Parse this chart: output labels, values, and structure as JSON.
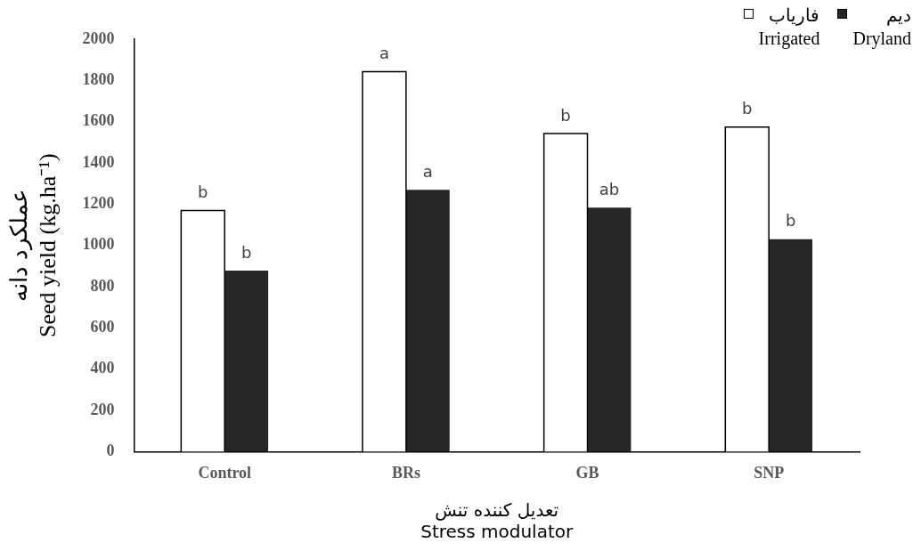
{
  "chart_data": {
    "type": "bar",
    "xlabel": [
      "تعدیل کننده تنش",
      "Stress modulator"
    ],
    "ylabel": [
      "عملکرد دانه",
      "Seed yield (kg.ha⁻¹)"
    ],
    "categories": [
      "Control",
      "BRs",
      "GB",
      "SNP"
    ],
    "series": [
      {
        "name": "فاریاب\nIrrigated",
        "color": "#ffffff",
        "values": [
          1169,
          1842,
          1542,
          1574
        ],
        "value_labels": [
          "b",
          "a",
          "b",
          "b"
        ]
      },
      {
        "name": "دیم\nDryland",
        "color": "#262626",
        "values": [
          878,
          1270,
          1183,
          1030
        ],
        "value_labels": [
          "b",
          "a",
          "ab",
          "b"
        ]
      }
    ],
    "ylim": [
      0,
      2000
    ],
    "yticks": [
      0,
      200,
      400,
      600,
      800,
      1000,
      1200,
      1400,
      1600,
      1800,
      2000
    ],
    "grid": false,
    "legend": "top right"
  }
}
